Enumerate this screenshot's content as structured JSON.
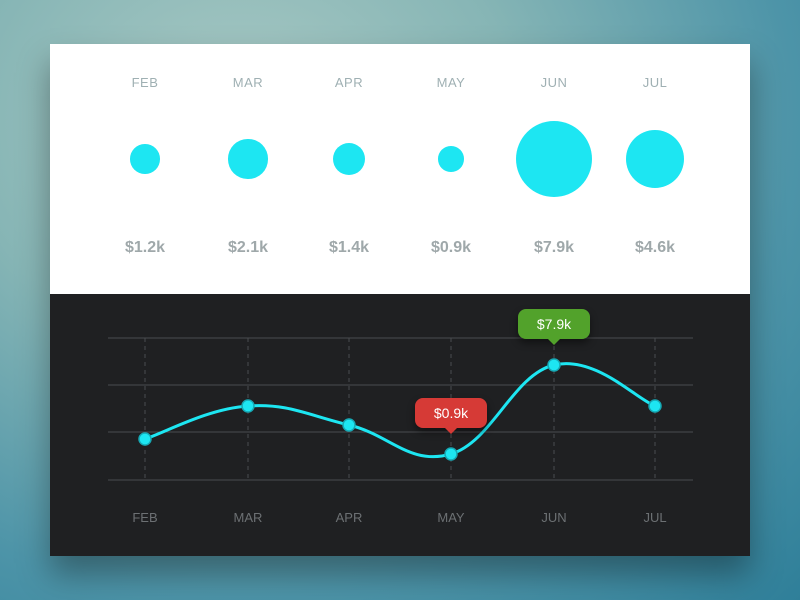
{
  "theme": {
    "accent": "#1de6f2",
    "top_bg": "#ffffff",
    "bottom_bg": "#1f2022",
    "grid_color": "#4a4c50",
    "highlight_low": "#d63a36",
    "highlight_high": "#52a22b"
  },
  "chart_data": [
    {
      "type": "scatter",
      "categories": [
        "FEB",
        "MAR",
        "APR",
        "MAY",
        "JUN",
        "JUL"
      ],
      "values": [
        1.2,
        2.1,
        1.4,
        0.9,
        7.9,
        4.6
      ],
      "value_labels": [
        "$1.2k",
        "$2.1k",
        "$1.4k",
        "$0.9k",
        "$7.9k",
        "$4.6k"
      ],
      "encoding": "bubble-size",
      "grid": false
    },
    {
      "type": "line",
      "categories": [
        "FEB",
        "MAR",
        "APR",
        "MAY",
        "JUN",
        "JUL"
      ],
      "values": [
        1.2,
        2.1,
        1.4,
        0.9,
        7.9,
        4.6
      ],
      "smooth": true,
      "grid": true,
      "annotations": [
        {
          "category": "MAY",
          "label": "$0.9k",
          "style": "low"
        },
        {
          "category": "JUN",
          "label": "$7.9k",
          "style": "high"
        }
      ]
    }
  ]
}
